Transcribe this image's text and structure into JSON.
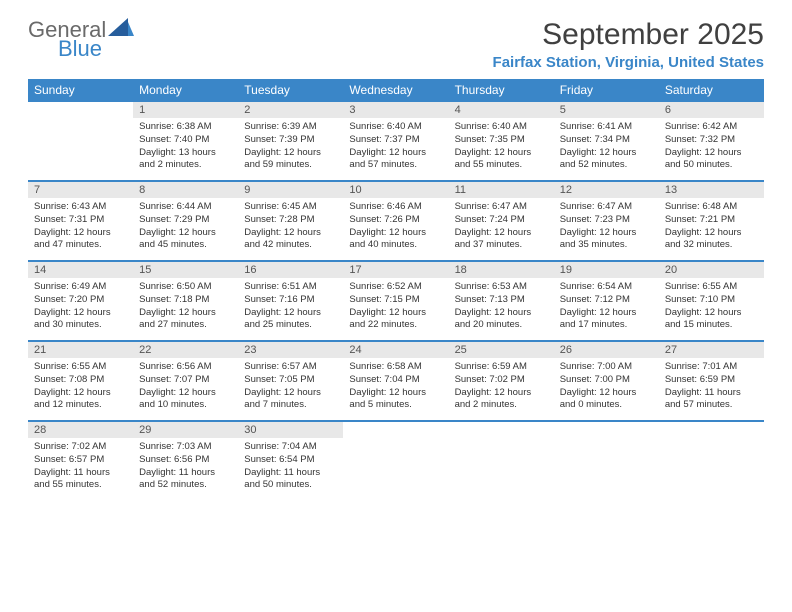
{
  "brand": {
    "word1": "General",
    "word2": "Blue",
    "logo_color": "#265d9c"
  },
  "title": "September 2025",
  "location": "Fairfax Station, Virginia, United States",
  "colors": {
    "header_bg": "#3a86c8",
    "daynum_bg": "#e8e8e8",
    "rule": "#3a86c8",
    "text": "#333333"
  },
  "daysOfWeek": [
    "Sunday",
    "Monday",
    "Tuesday",
    "Wednesday",
    "Thursday",
    "Friday",
    "Saturday"
  ],
  "leadingBlanks": 1,
  "days": [
    {
      "n": 1,
      "sunrise": "6:38 AM",
      "sunset": "7:40 PM",
      "daylight": "13 hours and 2 minutes."
    },
    {
      "n": 2,
      "sunrise": "6:39 AM",
      "sunset": "7:39 PM",
      "daylight": "12 hours and 59 minutes."
    },
    {
      "n": 3,
      "sunrise": "6:40 AM",
      "sunset": "7:37 PM",
      "daylight": "12 hours and 57 minutes."
    },
    {
      "n": 4,
      "sunrise": "6:40 AM",
      "sunset": "7:35 PM",
      "daylight": "12 hours and 55 minutes."
    },
    {
      "n": 5,
      "sunrise": "6:41 AM",
      "sunset": "7:34 PM",
      "daylight": "12 hours and 52 minutes."
    },
    {
      "n": 6,
      "sunrise": "6:42 AM",
      "sunset": "7:32 PM",
      "daylight": "12 hours and 50 minutes."
    },
    {
      "n": 7,
      "sunrise": "6:43 AM",
      "sunset": "7:31 PM",
      "daylight": "12 hours and 47 minutes."
    },
    {
      "n": 8,
      "sunrise": "6:44 AM",
      "sunset": "7:29 PM",
      "daylight": "12 hours and 45 minutes."
    },
    {
      "n": 9,
      "sunrise": "6:45 AM",
      "sunset": "7:28 PM",
      "daylight": "12 hours and 42 minutes."
    },
    {
      "n": 10,
      "sunrise": "6:46 AM",
      "sunset": "7:26 PM",
      "daylight": "12 hours and 40 minutes."
    },
    {
      "n": 11,
      "sunrise": "6:47 AM",
      "sunset": "7:24 PM",
      "daylight": "12 hours and 37 minutes."
    },
    {
      "n": 12,
      "sunrise": "6:47 AM",
      "sunset": "7:23 PM",
      "daylight": "12 hours and 35 minutes."
    },
    {
      "n": 13,
      "sunrise": "6:48 AM",
      "sunset": "7:21 PM",
      "daylight": "12 hours and 32 minutes."
    },
    {
      "n": 14,
      "sunrise": "6:49 AM",
      "sunset": "7:20 PM",
      "daylight": "12 hours and 30 minutes."
    },
    {
      "n": 15,
      "sunrise": "6:50 AM",
      "sunset": "7:18 PM",
      "daylight": "12 hours and 27 minutes."
    },
    {
      "n": 16,
      "sunrise": "6:51 AM",
      "sunset": "7:16 PM",
      "daylight": "12 hours and 25 minutes."
    },
    {
      "n": 17,
      "sunrise": "6:52 AM",
      "sunset": "7:15 PM",
      "daylight": "12 hours and 22 minutes."
    },
    {
      "n": 18,
      "sunrise": "6:53 AM",
      "sunset": "7:13 PM",
      "daylight": "12 hours and 20 minutes."
    },
    {
      "n": 19,
      "sunrise": "6:54 AM",
      "sunset": "7:12 PM",
      "daylight": "12 hours and 17 minutes."
    },
    {
      "n": 20,
      "sunrise": "6:55 AM",
      "sunset": "7:10 PM",
      "daylight": "12 hours and 15 minutes."
    },
    {
      "n": 21,
      "sunrise": "6:55 AM",
      "sunset": "7:08 PM",
      "daylight": "12 hours and 12 minutes."
    },
    {
      "n": 22,
      "sunrise": "6:56 AM",
      "sunset": "7:07 PM",
      "daylight": "12 hours and 10 minutes."
    },
    {
      "n": 23,
      "sunrise": "6:57 AM",
      "sunset": "7:05 PM",
      "daylight": "12 hours and 7 minutes."
    },
    {
      "n": 24,
      "sunrise": "6:58 AM",
      "sunset": "7:04 PM",
      "daylight": "12 hours and 5 minutes."
    },
    {
      "n": 25,
      "sunrise": "6:59 AM",
      "sunset": "7:02 PM",
      "daylight": "12 hours and 2 minutes."
    },
    {
      "n": 26,
      "sunrise": "7:00 AM",
      "sunset": "7:00 PM",
      "daylight": "12 hours and 0 minutes."
    },
    {
      "n": 27,
      "sunrise": "7:01 AM",
      "sunset": "6:59 PM",
      "daylight": "11 hours and 57 minutes."
    },
    {
      "n": 28,
      "sunrise": "7:02 AM",
      "sunset": "6:57 PM",
      "daylight": "11 hours and 55 minutes."
    },
    {
      "n": 29,
      "sunrise": "7:03 AM",
      "sunset": "6:56 PM",
      "daylight": "11 hours and 52 minutes."
    },
    {
      "n": 30,
      "sunrise": "7:04 AM",
      "sunset": "6:54 PM",
      "daylight": "11 hours and 50 minutes."
    }
  ],
  "labels": {
    "sunrise": "Sunrise: ",
    "sunset": "Sunset: ",
    "daylight": "Daylight: "
  }
}
